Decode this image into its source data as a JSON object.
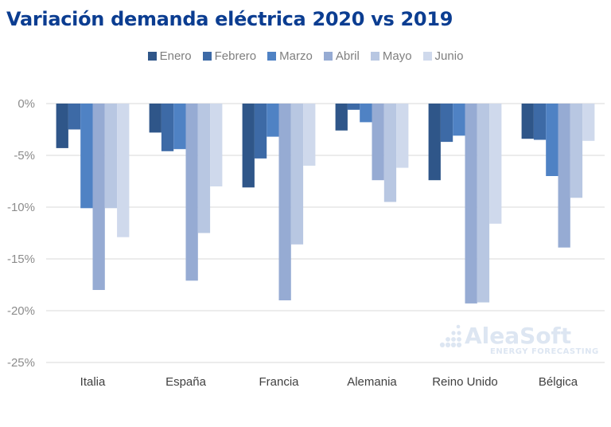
{
  "chart_data": {
    "type": "bar",
    "title": "Variación demanda eléctrica 2020 vs 2019",
    "categories": [
      "Italia",
      "España",
      "Francia",
      "Alemania",
      "Reino Unido",
      "Bélgica"
    ],
    "series": [
      {
        "name": "Enero",
        "color": "#2f5689",
        "values": [
          -4.3,
          -2.8,
          -8.1,
          -2.6,
          -7.4,
          -3.4
        ]
      },
      {
        "name": "Febrero",
        "color": "#3d6aa6",
        "values": [
          -2.5,
          -4.6,
          -5.3,
          -0.6,
          -3.7,
          -3.5
        ]
      },
      {
        "name": "Marzo",
        "color": "#4f82c4",
        "values": [
          -10.1,
          -4.4,
          -3.2,
          -1.8,
          -3.1,
          -7.0
        ]
      },
      {
        "name": "Abril",
        "color": "#96abd3",
        "values": [
          -18.0,
          -17.1,
          -19.0,
          -7.4,
          -19.3,
          -13.9
        ]
      },
      {
        "name": "Mayo",
        "color": "#b8c7e2",
        "values": [
          -10.1,
          -12.5,
          -13.6,
          -9.5,
          -19.2,
          -9.1
        ]
      },
      {
        "name": "Junio",
        "color": "#cfd9ec",
        "values": [
          -12.9,
          -8.0,
          -6.0,
          -6.2,
          -11.6,
          -3.6
        ]
      }
    ],
    "yticks": [
      "0%",
      "-5%",
      "-10%",
      "-15%",
      "-20%",
      "-25%"
    ],
    "ylim": [
      -25,
      0
    ],
    "grid": true,
    "legend_position": "top"
  },
  "watermark": {
    "brand": "AleaSoft",
    "tagline": "ENERGY FORECASTING"
  }
}
